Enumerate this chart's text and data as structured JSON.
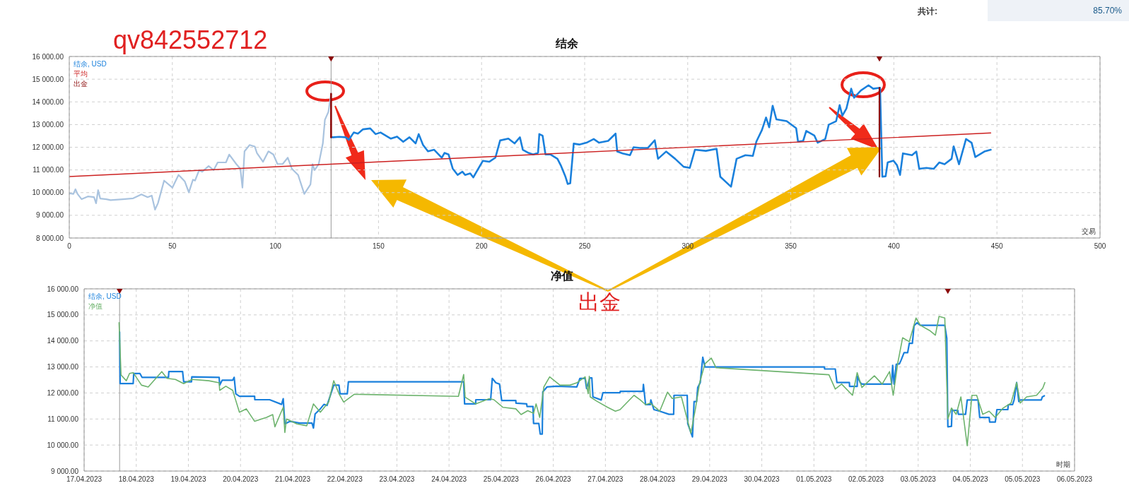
{
  "chart_data": [
    {
      "type": "line",
      "title": "结余",
      "xlabel": "交易",
      "xlim": [
        0,
        500
      ],
      "xticks": [
        0,
        50,
        100,
        150,
        200,
        250,
        300,
        350,
        400,
        450,
        500
      ],
      "ylim": [
        8000,
        16000
      ],
      "yticks": [
        {
          "value": 8000,
          "label": "8 000.00"
        },
        {
          "value": 9000,
          "label": "9 000.00"
        },
        {
          "value": 10000,
          "label": "10 000.00"
        },
        {
          "value": 11000,
          "label": "11 000.00"
        },
        {
          "value": 12000,
          "label": "12 000.00"
        },
        {
          "value": 13000,
          "label": "13 000.00"
        },
        {
          "value": 14000,
          "label": "14 000.00"
        },
        {
          "value": 15000,
          "label": "15 000.00"
        },
        {
          "value": 16000,
          "label": "16 000.00"
        }
      ],
      "grid": true,
      "legend": "top left",
      "series": [
        {
          "color": "#a9c3df",
          "x": [
            0,
            2,
            3,
            4,
            6,
            9,
            12,
            13,
            14,
            15,
            18,
            20,
            26,
            31,
            35,
            38,
            40,
            41.6,
            43,
            46,
            50,
            53,
            56,
            58,
            60,
            61,
            63,
            64.5,
            67.6,
            70,
            72,
            76,
            77.6,
            81,
            83,
            84,
            85,
            87.5,
            90,
            91,
            94,
            96.6,
            99,
            101,
            103.5,
            106,
            108,
            111,
            114,
            117,
            118,
            119,
            121,
            123,
            124,
            125.7,
            127
          ],
          "values": [
            9970,
            9940,
            10150,
            9940,
            9710,
            9830,
            9800,
            9530,
            10110,
            9740,
            9710,
            9670,
            9710,
            9750,
            9920,
            9800,
            9870,
            9250,
            9530,
            10530,
            10220,
            10780,
            10500,
            10010,
            10570,
            10530,
            10990,
            10920,
            11170,
            10990,
            11330,
            11330,
            11680,
            11260,
            11050,
            10220,
            11820,
            12100,
            12030,
            11750,
            11360,
            11820,
            11680,
            11260,
            11260,
            11540,
            11050,
            10780,
            9940,
            10360,
            11260,
            10990,
            11260,
            12170,
            13210,
            13560,
            14360
          ]
        },
        {
          "name": "结余, USD",
          "color": "#1a80dc",
          "x": [
            127,
            128,
            131,
            134,
            135.6,
            138,
            140,
            142.5,
            146,
            148.6,
            151,
            156,
            159,
            162,
            165,
            168,
            169.5,
            171.6,
            174,
            177,
            180.7,
            182,
            184,
            186,
            188.4,
            190.7,
            192,
            194.5,
            196,
            198,
            200.6,
            203.7,
            206.7,
            209,
            213,
            216,
            218.6,
            220,
            222.8,
            225,
            227.4,
            228,
            229.6,
            231,
            233.5,
            236.8,
            238.6,
            240.7,
            241.8,
            243,
            244.7,
            247.4,
            250.9,
            254.4,
            257,
            261.4,
            265,
            265.8,
            268.4,
            272,
            273.7,
            277,
            280.7,
            284,
            285.6,
            289.5,
            293.9,
            298,
            301,
            303.5,
            308.8,
            314,
            315.8,
            321,
            323.7,
            328,
            331.6,
            333.3,
            336,
            338,
            339.5,
            341.2,
            343,
            348,
            352.6,
            353.5,
            356,
            357.5,
            361.4,
            363,
            366.7,
            368.4,
            372,
            373.7,
            375,
            377,
            379.3,
            380.7,
            384,
            387.7,
            390,
            393.3,
            394.4,
            396,
            397,
            399.8,
            401.5,
            403,
            404.4,
            408.8,
            410.9,
            412.3,
            415.8,
            419.3,
            422,
            424.6,
            428,
            429,
            431.6,
            435,
            437.7,
            439.5,
            443.9,
            447
          ],
          "values": [
            12440,
            12440,
            12460,
            12440,
            12330,
            12650,
            12600,
            12790,
            12830,
            12580,
            12650,
            12380,
            12470,
            12240,
            12440,
            12170,
            12580,
            12100,
            11820,
            11890,
            11540,
            11750,
            11680,
            11060,
            10780,
            10920,
            10780,
            10850,
            10670,
            10990,
            11400,
            11360,
            11540,
            12300,
            12380,
            12170,
            12440,
            11890,
            11750,
            11680,
            11750,
            12580,
            12510,
            11680,
            11680,
            11490,
            11170,
            10700,
            10380,
            10410,
            12160,
            12120,
            12200,
            12360,
            12200,
            12280,
            12600,
            11810,
            11730,
            11650,
            12000,
            11970,
            11970,
            12310,
            11490,
            11810,
            11490,
            11140,
            11090,
            11890,
            11840,
            11930,
            10700,
            10260,
            11490,
            11650,
            11620,
            12250,
            12760,
            13310,
            12880,
            13830,
            13230,
            13150,
            12840,
            12250,
            12280,
            12720,
            12520,
            12200,
            12360,
            12990,
            13150,
            13860,
            13390,
            13710,
            14580,
            14180,
            14500,
            14730,
            14580,
            14620,
            10700,
            10720,
            11330,
            11410,
            11210,
            10780,
            11730,
            11650,
            11810,
            11050,
            11090,
            11050,
            11330,
            11250,
            11490,
            12040,
            11250,
            12360,
            12200,
            11570,
            11810,
            11890
          ]
        },
        {
          "name": "平均",
          "color": "#cc2020",
          "x": [
            0,
            447
          ],
          "values": [
            10710,
            12630
          ]
        },
        {
          "name": "出金",
          "color": "#8b0a0a",
          "x": [
            127,
            127
          ],
          "values": [
            14360,
            12440
          ]
        },
        {
          "color": "#8b0a0a",
          "x": [
            393,
            393
          ],
          "values": [
            14620,
            10700
          ]
        },
        {
          "type": "scatter",
          "marker": "triangle",
          "color": "#8b0a0a",
          "x": [
            127,
            393
          ],
          "values": [
            16000,
            16000
          ]
        }
      ],
      "ref_lines": [
        {
          "axis": "x",
          "value": 127,
          "color": "#999999"
        }
      ],
      "annotations": [
        "qv842552712",
        "出金",
        "共计:",
        "85.70%"
      ]
    },
    {
      "type": "line",
      "title": "净值",
      "xlabel": "时期",
      "xlim": [
        "2023-04-17",
        "2023-05-06"
      ],
      "xticks": [
        {
          "value": "2023-04-17",
          "label": "17.04.2023"
        },
        {
          "value": "2023-04-18",
          "label": "18.04.2023"
        },
        {
          "value": "2023-04-19",
          "label": "19.04.2023"
        },
        {
          "value": "2023-04-20",
          "label": "20.04.2023"
        },
        {
          "value": "2023-04-21",
          "label": "21.04.2023"
        },
        {
          "value": "2023-04-22",
          "label": "22.04.2023"
        },
        {
          "value": "2023-04-23",
          "label": "23.04.2023"
        },
        {
          "value": "2023-04-24",
          "label": "24.04.2023"
        },
        {
          "value": "2023-04-25",
          "label": "25.04.2023"
        },
        {
          "value": "2023-04-26",
          "label": "26.04.2023"
        },
        {
          "value": "2023-04-27",
          "label": "27.04.2023"
        },
        {
          "value": "2023-04-28",
          "label": "28.04.2023"
        },
        {
          "value": "2023-04-29",
          "label": "29.04.2023"
        },
        {
          "value": "2023-04-30",
          "label": "30.04.2023"
        },
        {
          "value": "2023-05-01",
          "label": "01.05.2023"
        },
        {
          "value": "2023-05-02",
          "label": "02.05.2023"
        },
        {
          "value": "2023-05-03",
          "label": "03.05.2023"
        },
        {
          "value": "2023-05-04",
          "label": "04.05.2023"
        },
        {
          "value": "2023-05-05",
          "label": "05.05.2023"
        },
        {
          "value": "2023-05-06",
          "label": "06.05.2023"
        }
      ],
      "ylim": [
        9000,
        16000
      ],
      "yticks": [
        {
          "value": 9000,
          "label": "9 000.00"
        },
        {
          "value": 10000,
          "label": "10 000.00"
        },
        {
          "value": 11000,
          "label": "11 000.00"
        },
        {
          "value": 12000,
          "label": "12 000.00"
        },
        {
          "value": 13000,
          "label": "13 000.00"
        },
        {
          "value": 14000,
          "label": "14 000.00"
        },
        {
          "value": 15000,
          "label": "15 000.00"
        },
        {
          "value": 16000,
          "label": "16 000.00"
        }
      ],
      "grid": true,
      "legend": "top left",
      "series": [
        {
          "name": "结余, USD",
          "color": "#1a80dc",
          "x": [
            "2023-04-17T16:20",
            "2023-04-17T16:35",
            "2023-04-17T18:40",
            "2023-04-17T22:35",
            "2023-04-17T22:50",
            "2023-04-18T01:40",
            "2023-04-18T02:40",
            "2023-04-18T14:50",
            "2023-04-18T15:00",
            "2023-04-18T21:20",
            "2023-04-18T21:50",
            "2023-04-19T01:25",
            "2023-04-19T01:35",
            "2023-04-19T14:10",
            "2023-04-19T14:25",
            "2023-04-19T15:35",
            "2023-04-19T20:25",
            "2023-04-19T21:05",
            "2023-04-19T21:50",
            "2023-04-19T23:30",
            "2023-04-20T06:30",
            "2023-04-20T06:35",
            "2023-04-20T13:25",
            "2023-04-20T18:55",
            "2023-04-20T19:40",
            "2023-04-20T20:25",
            "2023-04-20T22:50",
            "2023-04-21T03:20",
            "2023-04-21T08:55",
            "2023-04-21T09:35",
            "2023-04-21T10:20",
            "2023-04-21T12:45",
            "2023-04-21T14:25",
            "2023-04-21T15:50",
            "2023-04-21T18:55",
            "2023-04-21T21:20",
            "2023-04-21T21:50",
            "2023-04-22T01:10",
            "2023-04-22T01:40",
            "2023-04-24T06:45",
            "2023-04-24T07:10",
            "2023-04-24T12:15",
            "2023-04-24T12:20",
            "2023-04-24T19:10",
            "2023-04-24T19:55",
            "2023-04-24T21:35",
            "2023-04-24T23:15",
            "2023-04-25T00:15",
            "2023-04-25T06:45",
            "2023-04-25T06:50",
            "2023-04-25T11:45",
            "2023-04-25T11:55",
            "2023-04-25T14:40",
            "2023-04-25T14:55",
            "2023-04-25T17:20",
            "2023-04-25T18:00",
            "2023-04-25T18:55",
            "2023-04-25T19:10",
            "2023-04-25T21:05",
            "2023-04-26T01:25",
            "2023-04-26T10:50",
            "2023-04-26T12:15",
            "2023-04-26T14:40",
            "2023-04-26T15:20",
            "2023-04-26T16:50",
            "2023-04-26T17:45",
            "2023-04-26T18:15",
            "2023-04-26T22:05",
            "2023-04-26T22:50",
            "2023-04-27T06:45",
            "2023-04-27T06:50",
            "2023-04-27T17:15",
            "2023-04-27T17:30",
            "2023-04-27T18:30",
            "2023-04-27T20:40",
            "2023-04-27T20:55",
            "2023-04-27T22:20",
            "2023-04-28T01:00",
            "2023-04-28T05:15",
            "2023-04-28T07:25",
            "2023-04-28T07:35",
            "2023-04-28T13:40",
            "2023-04-28T13:55",
            "2023-04-28T16:05",
            "2023-04-28T16:50",
            "2023-04-28T18:00",
            "2023-04-28T18:30",
            "2023-04-28T19:40",
            "2023-04-28T20:50",
            "2023-04-28T21:50",
            "2023-05-01T04:50",
            "2023-05-01T04:55",
            "2023-05-01T09:50",
            "2023-05-01T10:35",
            "2023-05-01T16:20",
            "2023-05-01T16:25",
            "2023-05-01T19:55",
            "2023-05-01T20:00",
            "2023-05-01T21:20",
            "2023-05-01T22:05",
            "2023-05-02T11:45",
            "2023-05-02T12:15",
            "2023-05-02T12:55",
            "2023-05-02T13:55",
            "2023-05-02T15:20",
            "2023-05-02T16:05",
            "2023-05-02T17:30",
            "2023-05-02T19:10",
            "2023-05-02T19:55",
            "2023-05-02T21:20",
            "2023-05-02T22:05",
            "2023-05-02T23:30",
            "2023-05-03T01:00",
            "2023-05-03T12:15",
            "2023-05-03T13:10",
            "2023-05-03T13:40",
            "2023-05-03T15:20",
            "2023-05-03T15:35",
            "2023-05-03T18:15",
            "2023-05-03T18:30",
            "2023-05-03T21:50",
            "2023-05-03T22:35",
            "2023-05-04T03:35",
            "2023-05-04T04:20",
            "2023-05-04T08:40",
            "2023-05-04T08:55",
            "2023-05-04T11:30",
            "2023-05-04T12:15",
            "2023-05-04T17:15",
            "2023-05-04T17:30",
            "2023-05-04T19:25",
            "2023-05-04T20:10",
            "2023-05-04T21:20",
            "2023-05-04T22:20",
            "2023-05-04T23:00",
            "2023-05-05T08:40",
            "2023-05-05T09:10",
            "2023-05-05T10:05"
          ],
          "values": [
            14340,
            12360,
            12360,
            12360,
            12750,
            12750,
            12600,
            12600,
            12820,
            12820,
            12430,
            12430,
            12620,
            12600,
            12300,
            12490,
            12490,
            12600,
            11970,
            11870,
            11870,
            11740,
            11740,
            11560,
            11780,
            10810,
            10910,
            10840,
            10840,
            10650,
            11190,
            11390,
            11560,
            11520,
            12300,
            12300,
            11970,
            11970,
            12430,
            12430,
            11580,
            11580,
            11740,
            11740,
            12560,
            12390,
            12340,
            11710,
            11710,
            11610,
            11580,
            11480,
            11480,
            10830,
            10830,
            10420,
            10420,
            12040,
            12230,
            12260,
            12230,
            12560,
            12560,
            12170,
            12580,
            12580,
            11850,
            11730,
            12010,
            12010,
            12060,
            12060,
            12330,
            11550,
            11550,
            11730,
            11360,
            11300,
            11180,
            11180,
            11910,
            11910,
            10820,
            10310,
            11670,
            11670,
            12210,
            12400,
            13370,
            13000,
            13000,
            12920,
            12920,
            12400,
            12400,
            12250,
            12250,
            12640,
            12400,
            12340,
            12340,
            13060,
            12340,
            13100,
            13120,
            13250,
            13550,
            13550,
            13910,
            13910,
            14580,
            14700,
            14600,
            14600,
            14100,
            10700,
            10720,
            11330,
            11330,
            11180,
            11180,
            11730,
            11730,
            11060,
            11060,
            10880,
            10880,
            11360,
            11360,
            11550,
            11550,
            11730,
            12400,
            11670,
            11730,
            11730,
            11850,
            11890
          ]
        },
        {
          "name": "净值",
          "color": "#6db36d",
          "x": [
            "2023-04-17T16:05",
            "2023-04-17T17:00",
            "2023-04-17T19:25",
            "2023-04-17T20:55",
            "2023-04-17T22:35",
            "2023-04-18T02:25",
            "2023-04-18T05:30",
            "2023-04-18T11:45",
            "2023-04-18T14:10",
            "2023-04-18T18:00",
            "2023-04-18T21:50",
            "2023-04-19T01:40",
            "2023-04-19T09:25",
            "2023-04-19T14:10",
            "2023-04-19T14:25",
            "2023-04-19T17:15",
            "2023-04-19T20:25",
            "2023-04-19T21:50",
            "2023-04-19T23:30",
            "2023-04-20T02:40",
            "2023-04-20T06:30",
            "2023-04-20T12:00",
            "2023-04-20T14:50",
            "2023-04-20T15:50",
            "2023-04-20T18:00",
            "2023-04-20T19:40",
            "2023-04-20T20:25",
            "2023-04-20T21:10",
            "2023-04-21T01:55",
            "2023-04-21T06:30",
            "2023-04-21T09:35",
            "2023-04-21T12:45",
            "2023-04-21T16:35",
            "2023-04-21T18:55",
            "2023-04-21T21:20",
            "2023-04-21T23:30",
            "2023-04-22T04:20",
            "2023-04-24T04:20",
            "2023-04-24T06:45",
            "2023-04-24T07:25",
            "2023-04-24T12:15",
            "2023-04-24T18:30",
            "2023-04-24T20:40",
            "2023-04-25T00:45",
            "2023-04-25T06:45",
            "2023-04-25T09:10",
            "2023-04-25T12:15",
            "2023-04-25T14:55",
            "2023-04-25T16:05",
            "2023-04-25T17:45",
            "2023-04-25T19:40",
            "2023-04-25T22:20",
            "2023-04-26T03:05",
            "2023-04-26T07:40",
            "2023-04-26T10:50",
            "2023-04-26T14:40",
            "2023-04-26T16:05",
            "2023-04-26T16:35",
            "2023-04-26T17:00",
            "2023-04-26T19:55",
            "2023-04-27T01:00",
            "2023-04-27T04:35",
            "2023-04-27T06:45",
            "2023-04-27T13:10",
            "2023-04-27T16:05",
            "2023-04-27T18:30",
            "2023-04-27T20:40",
            "2023-04-28T01:00",
            "2023-04-28T04:35",
            "2023-04-28T06:45",
            "2023-04-28T11:00",
            "2023-04-28T15:20",
            "2023-04-28T17:30",
            "2023-04-28T19:25",
            "2023-04-28T21:50",
            "2023-04-29T00:45",
            "2023-04-29T02:55",
            "2023-05-01T06:55",
            "2023-05-01T09:50",
            "2023-05-01T12:45",
            "2023-05-01T17:45",
            "2023-05-01T19:55",
            "2023-05-01T22:05",
            "2023-05-02T03:50",
            "2023-05-02T07:25",
            "2023-05-02T10:50",
            "2023-05-02T12:30",
            "2023-05-02T14:40",
            "2023-05-02T16:50",
            "2023-05-02T19:55",
            "2023-05-02T23:00",
            "2023-05-03T01:00",
            "2023-05-03T05:15",
            "2023-05-03T07:55",
            "2023-05-03T09:35",
            "2023-05-03T12:15",
            "2023-05-03T13:40",
            "2023-05-03T15:20",
            "2023-05-03T17:30",
            "2023-05-03T19:40",
            "2023-05-03T22:35",
            "2023-05-04T00:45",
            "2023-05-04T02:55",
            "2023-05-04T05:45",
            "2023-05-04T08:40",
            "2023-05-04T11:30",
            "2023-05-04T15:05",
            "2023-05-04T18:45",
            "2023-05-04T21:20",
            "2023-05-04T23:00",
            "2023-05-05T01:55",
            "2023-05-05T06:30",
            "2023-05-05T09:20",
            "2023-05-05T10:20"
          ],
          "values": [
            14700,
            12690,
            12470,
            12750,
            12780,
            12300,
            12230,
            12820,
            12560,
            12520,
            12360,
            12520,
            12470,
            12390,
            12100,
            12260,
            12100,
            11710,
            11260,
            11390,
            10910,
            11060,
            11170,
            10700,
            11130,
            11450,
            10480,
            11000,
            10810,
            10740,
            11580,
            11260,
            11650,
            12470,
            11970,
            11650,
            11950,
            11870,
            12710,
            11840,
            11580,
            11780,
            11740,
            11450,
            11390,
            11170,
            11320,
            11220,
            11580,
            11060,
            12230,
            12620,
            12300,
            12300,
            12390,
            12620,
            11970,
            12640,
            11850,
            11690,
            11450,
            11300,
            11360,
            11910,
            11730,
            11550,
            11610,
            11300,
            12030,
            11790,
            11850,
            10450,
            11420,
            12400,
            13120,
            13340,
            12970,
            12700,
            12150,
            12340,
            11910,
            12780,
            12210,
            12660,
            12340,
            12820,
            11910,
            13180,
            14120,
            13970,
            14880,
            14600,
            14400,
            14220,
            14940,
            14880,
            11000,
            11420,
            11180,
            11850,
            9970,
            11910,
            11910,
            11180,
            11300,
            11060,
            11420,
            11610,
            12400,
            11610,
            11850,
            11910,
            12180,
            12400
          ]
        },
        {
          "type": "scatter",
          "marker": "triangle",
          "color": "#8b0a0a",
          "x": [
            "2023-04-17T16:20",
            "2023-05-03T13:40"
          ],
          "values": [
            16000,
            16000
          ]
        }
      ],
      "ref_lines": [
        {
          "axis": "x",
          "value": "2023-04-17T16:20",
          "color": "#999999"
        }
      ]
    }
  ]
}
